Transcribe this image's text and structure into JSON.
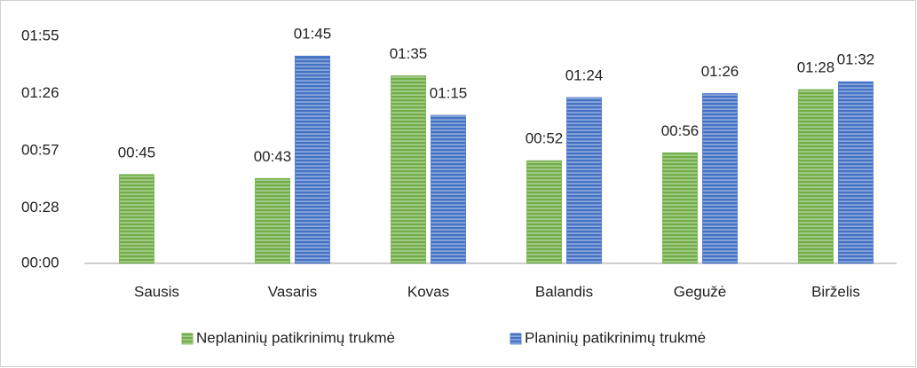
{
  "chart_data": {
    "type": "bar",
    "categories": [
      "Sausis",
      "Vasaris",
      "Kovas",
      "Balandis",
      "Gegužė",
      "Birželis"
    ],
    "series": [
      {
        "name": "Neplaninių patikrinimų trukmė",
        "color": "#70ad47",
        "values": [
          45,
          43,
          95,
          52,
          56,
          88
        ],
        "value_labels": [
          "00:45",
          "00:43",
          "01:35",
          "00:52",
          "00:56",
          "01:28"
        ]
      },
      {
        "name": "Planinių patikrinimų trukmė",
        "color": "#4472c4",
        "values": [
          null,
          105,
          75,
          84,
          86,
          92
        ],
        "value_labels": [
          null,
          "01:45",
          "01:15",
          "01:24",
          "01:26",
          "01:32"
        ]
      }
    ],
    "ylim": [
      0,
      115
    ],
    "yticks": [
      {
        "value": 0,
        "label": "00:00"
      },
      {
        "value": 28,
        "label": "00:28"
      },
      {
        "value": 57,
        "label": "00:57"
      },
      {
        "value": 86,
        "label": "01:26"
      },
      {
        "value": 115,
        "label": "01:55"
      }
    ],
    "legend": "bottom"
  }
}
